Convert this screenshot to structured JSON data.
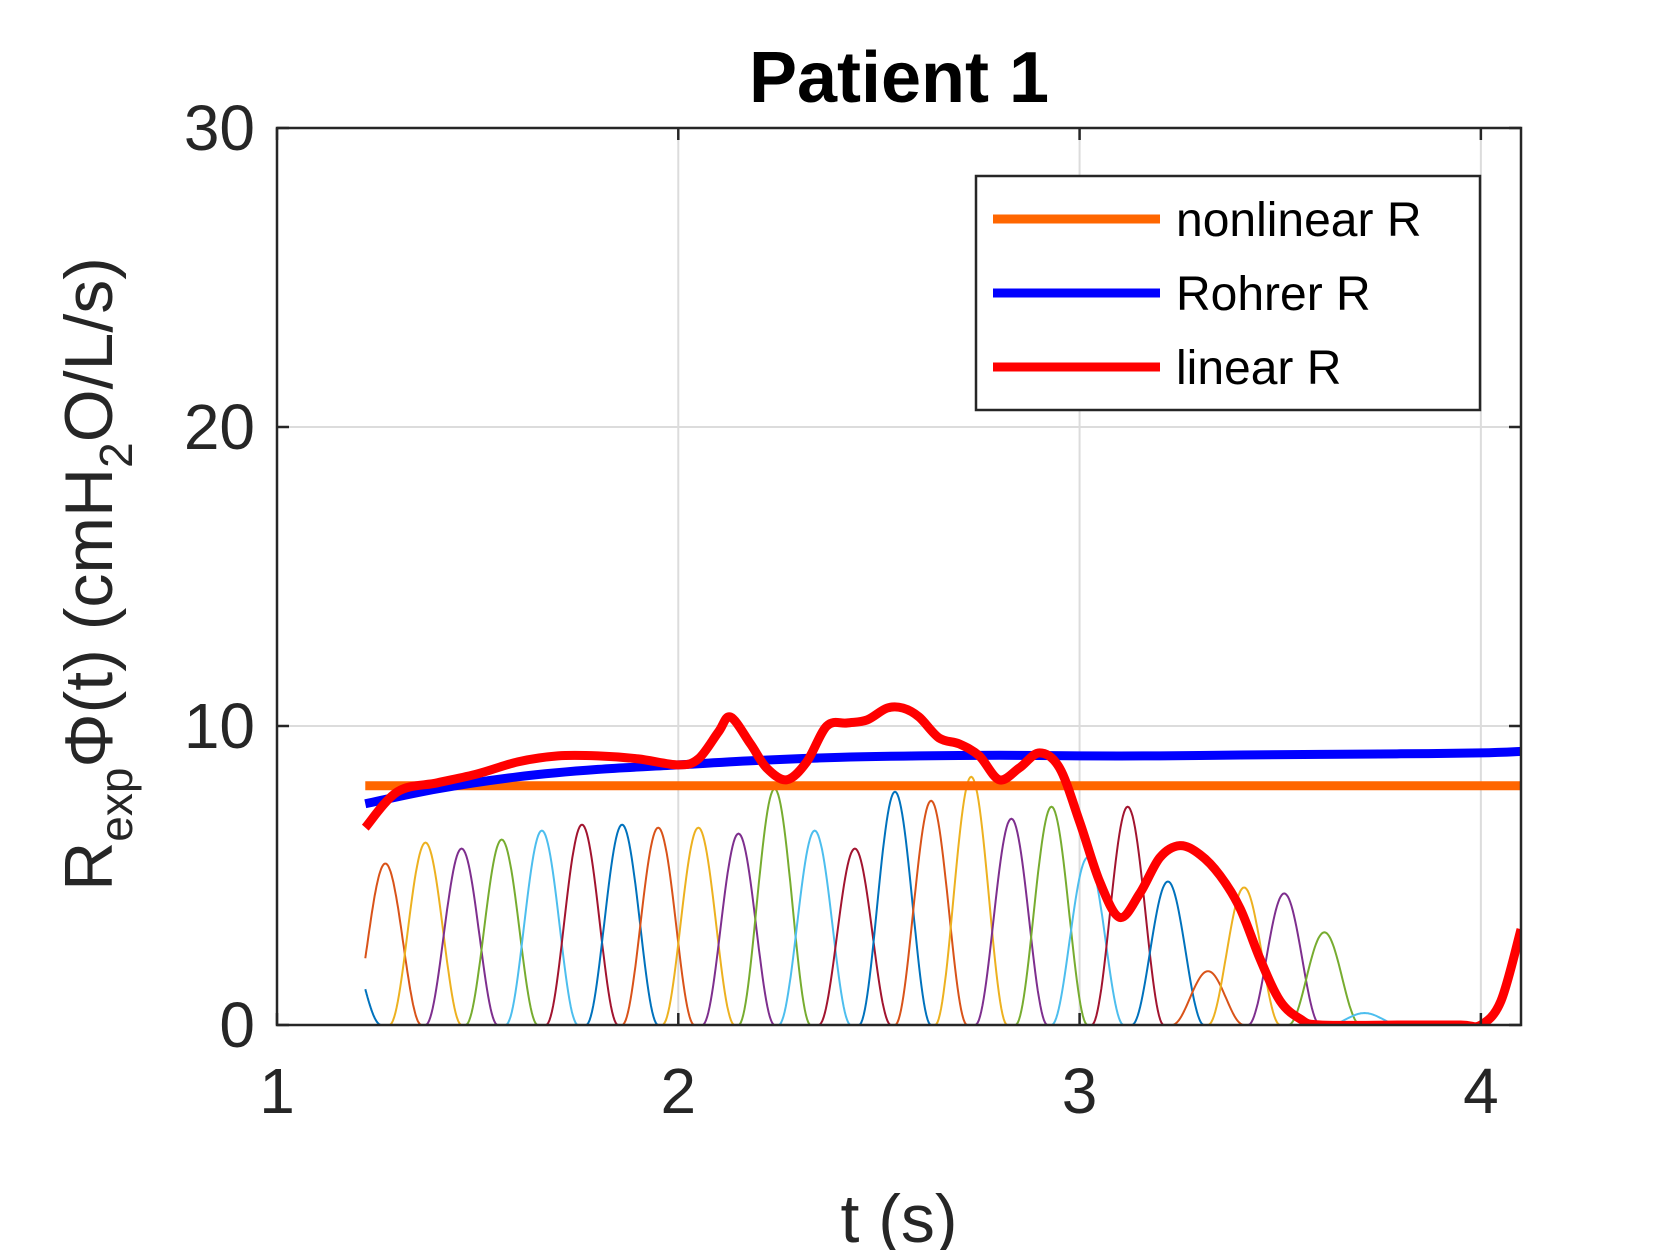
{
  "chart_data": {
    "type": "line",
    "title": "Patient 1",
    "xlabel": "t (s)",
    "ylabel": {
      "base": "R",
      "sub": "exp",
      "rest_pre": "Φ(t) (cmH",
      "sub2": "2",
      "rest_post": "O/L/s)"
    },
    "xlim": [
      1,
      4.1
    ],
    "ylim": [
      0,
      30
    ],
    "xticks": [
      1,
      2,
      3,
      4
    ],
    "yticks": [
      0,
      10,
      20,
      30
    ],
    "grid": true,
    "legend_position": "top-right",
    "series": [
      {
        "name": "nonlinear R",
        "color": "#ff6600",
        "x": [
          1.22,
          4.1
        ],
        "y": [
          8.0,
          8.0
        ]
      },
      {
        "name": "Rohrer R",
        "color": "#0000ff",
        "x": [
          1.22,
          1.4,
          1.6,
          1.8,
          2.0,
          2.2,
          2.4,
          2.6,
          2.8,
          3.0,
          3.2,
          3.4,
          3.6,
          3.8,
          4.0,
          4.1
        ],
        "y": [
          7.4,
          7.9,
          8.3,
          8.55,
          8.7,
          8.85,
          8.95,
          9.0,
          9.02,
          9.0,
          9.0,
          9.03,
          9.05,
          9.07,
          9.1,
          9.15
        ]
      },
      {
        "name": "linear R",
        "color": "#ff0000",
        "x": [
          1.22,
          1.3,
          1.4,
          1.5,
          1.6,
          1.7,
          1.8,
          1.9,
          2.0,
          2.05,
          2.1,
          2.13,
          2.18,
          2.22,
          2.27,
          2.32,
          2.37,
          2.42,
          2.47,
          2.52,
          2.56,
          2.6,
          2.65,
          2.7,
          2.75,
          2.8,
          2.85,
          2.9,
          2.95,
          3.0,
          3.05,
          3.1,
          3.15,
          3.2,
          3.25,
          3.3,
          3.35,
          3.4,
          3.45,
          3.5,
          3.55,
          3.6,
          3.8,
          3.95,
          4.0,
          4.05,
          4.1
        ],
        "y": [
          6.6,
          7.8,
          8.1,
          8.4,
          8.8,
          9.0,
          9.0,
          8.9,
          8.7,
          8.9,
          9.8,
          10.3,
          9.4,
          8.6,
          8.2,
          8.8,
          10.0,
          10.1,
          10.2,
          10.6,
          10.6,
          10.3,
          9.6,
          9.4,
          9.0,
          8.2,
          8.6,
          9.1,
          8.6,
          6.8,
          4.8,
          3.6,
          4.4,
          5.6,
          6.0,
          5.7,
          5.0,
          3.9,
          2.2,
          0.8,
          0.2,
          0.0,
          0.0,
          0.0,
          0.0,
          0.8,
          3.2
        ]
      }
    ],
    "basis_functions": {
      "width": 0.09,
      "colors": [
        "#0072bd",
        "#d95319",
        "#edb120",
        "#7e2f8e",
        "#77ac30",
        "#4dbeee",
        "#a2142f"
      ],
      "centers": [
        1.17,
        1.27,
        1.37,
        1.46,
        1.56,
        1.66,
        1.76,
        1.86,
        1.95,
        2.05,
        2.15,
        2.24,
        2.34,
        2.44,
        2.54,
        2.63,
        2.73,
        2.83,
        2.93,
        3.02,
        3.12,
        3.22,
        3.32,
        3.41,
        3.51,
        3.61,
        3.71
      ],
      "heights": [
        2.9,
        5.4,
        6.1,
        5.9,
        6.2,
        6.5,
        6.7,
        6.7,
        6.6,
        6.6,
        6.4,
        7.9,
        6.5,
        5.9,
        7.8,
        7.5,
        8.3,
        6.9,
        7.3,
        5.6,
        7.3,
        4.8,
        1.8,
        4.6,
        4.4,
        3.1,
        0.4
      ]
    }
  }
}
